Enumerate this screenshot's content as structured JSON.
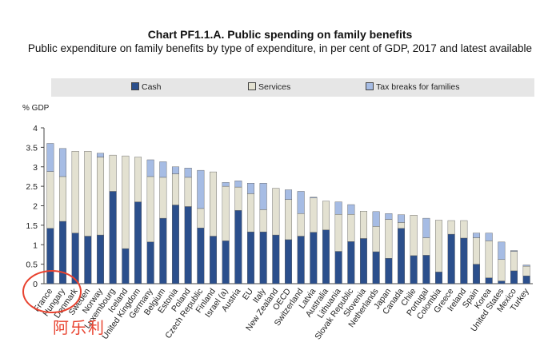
{
  "chart_data": {
    "type": "bar",
    "title": "Chart PF1.1.A. Public spending on family benefits",
    "subtitle": "Public expenditure on family benefits by type of expenditure, in per cent of GDP, 2017 and latest available",
    "ylabel": "% GDP",
    "ylim": [
      0,
      4
    ],
    "yticks": [
      "0",
      "0.5",
      "1",
      "1.5",
      "2",
      "2.5",
      "3",
      "3.5",
      "4"
    ],
    "stacked": true,
    "categories": [
      "France",
      "Hungary",
      "Denmark",
      "Sweden",
      "Norway",
      "Luxembourg",
      "Iceland",
      "United Kingdom",
      "Germany",
      "Belgium",
      "Estonia",
      "Poland",
      "Czech Republic",
      "Finland",
      "Israel (a)",
      "Austria",
      "EU",
      "Italy",
      "New Zealand",
      "OECD",
      "Switzerland",
      "Latvia",
      "Australia",
      "Lithuania",
      "Slovak Republic",
      "Slovenia",
      "Netherlands",
      "Japan",
      "Canada",
      "Chile",
      "Portugal",
      "Colombia",
      "Greece",
      "Ireland",
      "Spain",
      "Korea",
      "United States",
      "Mexico",
      "Turkey"
    ],
    "series": [
      {
        "name": "Cash",
        "color": "#2b4f8c",
        "values": [
          1.42,
          1.6,
          1.3,
          1.22,
          1.25,
          2.37,
          0.9,
          2.1,
          1.07,
          1.68,
          2.02,
          1.98,
          1.43,
          1.22,
          1.1,
          1.88,
          1.33,
          1.33,
          1.25,
          1.13,
          1.22,
          1.32,
          1.38,
          0.83,
          1.08,
          1.16,
          0.82,
          0.65,
          1.42,
          0.72,
          0.73,
          0.3,
          1.27,
          1.17,
          0.5,
          0.15,
          0.07,
          0.33,
          0.2
        ]
      },
      {
        "name": "Services",
        "color": "#e3e1d1",
        "values": [
          1.46,
          1.15,
          2.1,
          2.18,
          2.0,
          0.93,
          2.38,
          1.15,
          1.68,
          1.05,
          0.8,
          0.75,
          0.5,
          1.65,
          1.4,
          0.6,
          0.98,
          0.57,
          1.2,
          1.03,
          0.58,
          0.88,
          0.74,
          0.95,
          0.7,
          0.7,
          0.65,
          1.0,
          0.15,
          1.04,
          0.45,
          1.33,
          0.35,
          0.45,
          0.68,
          0.95,
          0.55,
          0.5,
          0.25
        ]
      },
      {
        "name": "Tax breaks for families",
        "color": "#a6bce4",
        "values": [
          0.72,
          0.72,
          0.0,
          0.0,
          0.1,
          0.0,
          0.0,
          0.0,
          0.43,
          0.4,
          0.18,
          0.24,
          0.98,
          0.0,
          0.1,
          0.16,
          0.27,
          0.68,
          0.0,
          0.25,
          0.57,
          0.02,
          0.0,
          0.32,
          0.25,
          0.0,
          0.38,
          0.15,
          0.2,
          0.0,
          0.5,
          0.0,
          0.0,
          0.0,
          0.12,
          0.2,
          0.45,
          0.02,
          0.03
        ]
      }
    ],
    "legend": [
      "Cash",
      "Services",
      "Tax breaks for families"
    ],
    "legend_position": "top"
  },
  "watermark": "阿乐利"
}
